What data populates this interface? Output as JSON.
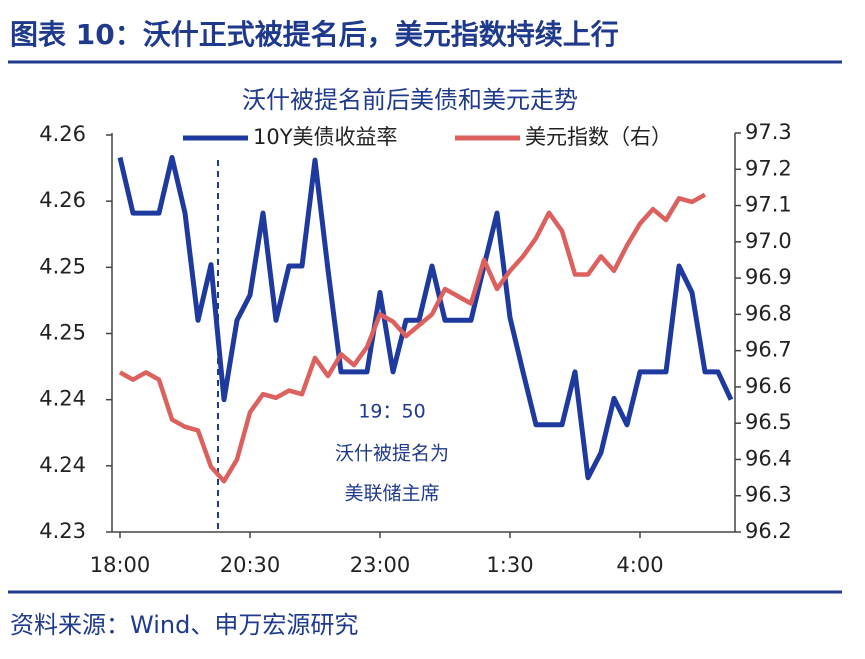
{
  "chart_data": {
    "type": "line",
    "header": "图表 10：沃什正式被提名后，美元指数持续上行",
    "title": "沃什被提名前后美债和美元走势",
    "source": "资料来源：Wind、申万宏源研究",
    "annotations": [
      "19：50",
      "沃什被提名为",
      "美联储主席"
    ],
    "categories": [
      "18:00",
      null,
      null,
      null,
      null,
      null,
      null,
      null,
      null,
      null,
      "20:30",
      null,
      null,
      null,
      null,
      null,
      null,
      null,
      null,
      null,
      "23:00",
      null,
      null,
      null,
      null,
      null,
      null,
      null,
      null,
      null,
      "1:30",
      null,
      null,
      null,
      null,
      null,
      null,
      null,
      null,
      null,
      "4:00",
      null,
      null,
      null,
      null,
      null,
      null,
      null
    ],
    "series": [
      {
        "name": "10Y美债收益率",
        "color": "#1f3a9e",
        "values": [
          4.2583,
          4.2541,
          4.2541,
          4.2541,
          4.2583,
          4.2541,
          4.246,
          4.2502,
          4.24,
          4.246,
          4.2479,
          4.2541,
          4.246,
          4.2501,
          4.2501,
          4.2581,
          4.2498,
          4.2421,
          4.2421,
          4.2421,
          4.2481,
          4.2421,
          4.246,
          4.246,
          4.2501,
          4.246,
          4.246,
          4.246,
          4.2501,
          4.2541,
          4.2462,
          4.2421,
          4.2381,
          4.2381,
          4.2381,
          4.2421,
          4.2341,
          4.236,
          4.2401,
          4.2381,
          4.2421,
          4.2421,
          4.2421,
          4.2501,
          4.2481,
          4.2421,
          4.2421,
          4.24
        ]
      },
      {
        "name": "美元指数（右）",
        "color": "#dc605d",
        "axis": "y2",
        "values": [
          96.64,
          96.62,
          96.64,
          96.62,
          96.51,
          96.49,
          96.48,
          96.38,
          96.34,
          96.4,
          96.53,
          96.58,
          96.57,
          96.59,
          96.58,
          96.68,
          96.63,
          96.69,
          96.66,
          96.71,
          96.8,
          96.78,
          96.74,
          96.77,
          96.8,
          96.87,
          96.85,
          96.83,
          96.95,
          96.87,
          96.92,
          96.96,
          97.01,
          97.08,
          97.03,
          96.91,
          96.91,
          96.96,
          96.92,
          96.99,
          97.05,
          97.09,
          97.06,
          97.12,
          97.11,
          97.13,
          null,
          null
        ]
      }
    ],
    "ylim": [
      4.23,
      4.26
    ],
    "yticks": [
      {
        "value": 4.23,
        "label": "4.23"
      },
      {
        "value": 4.235,
        "label": "4.24"
      },
      {
        "value": 4.24,
        "label": "4.24"
      },
      {
        "value": 4.245,
        "label": "4.25"
      },
      {
        "value": 4.25,
        "label": "4.25"
      },
      {
        "value": 4.255,
        "label": "4.26"
      },
      {
        "value": 4.26,
        "label": "4.26"
      }
    ],
    "y2lim": [
      96.2,
      97.3
    ],
    "y2ticks": [
      96.2,
      96.3,
      96.4,
      96.5,
      96.6,
      96.7,
      96.8,
      96.9,
      {
        "value": 97,
        "label": "97.0"
      },
      97.1,
      97.2,
      97.3
    ],
    "grid": false
  }
}
